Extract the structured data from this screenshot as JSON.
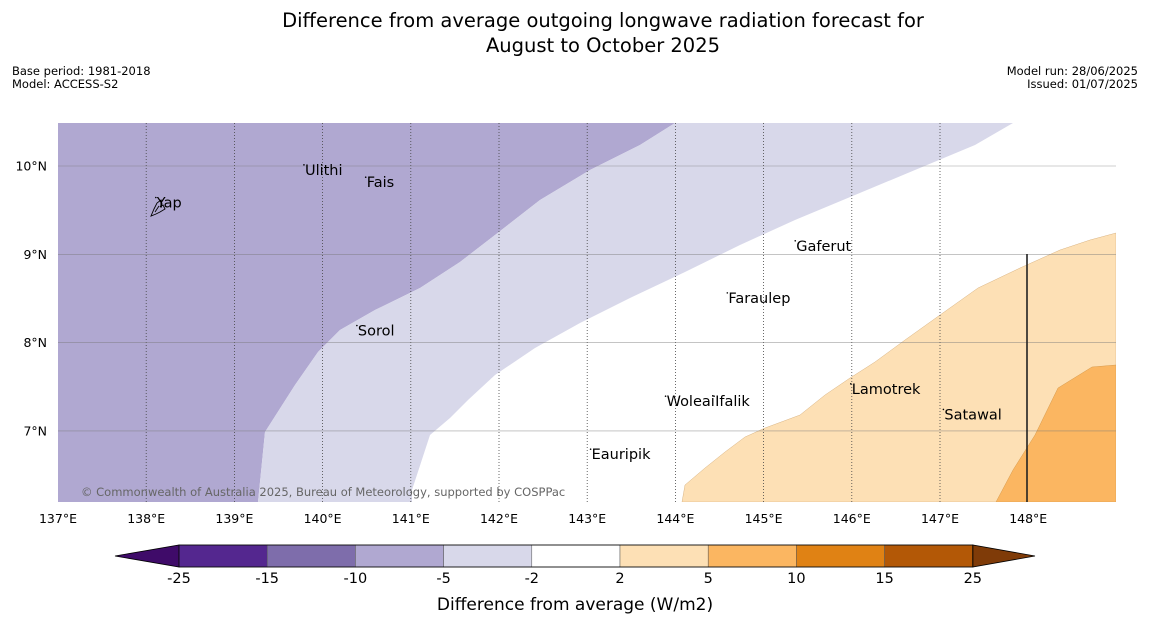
{
  "title": {
    "line1": "Difference from average outgoing longwave radiation forecast for",
    "line2": "August to October 2025"
  },
  "meta_left": {
    "base_period": "Base period: 1981-2018",
    "model": "Model: ACCESS-S2"
  },
  "meta_right": {
    "model_run": "Model run: 28/06/2025",
    "issued": "Issued: 01/07/2025"
  },
  "map": {
    "lon_range": [
      137,
      149
    ],
    "lat_range": [
      6.2,
      10.5
    ],
    "lon_ticks": [
      "137°E",
      "138°E",
      "139°E",
      "140°E",
      "141°E",
      "142°E",
      "143°E",
      "144°E",
      "145°E",
      "146°E",
      "147°E",
      "148°E"
    ],
    "lat_ticks": [
      "10°N",
      "9°N",
      "8°N",
      "7°N"
    ],
    "copyright": "© Commonwealth of Australia 2025, Bureau of Meteorology, supported by COSPPac",
    "places": [
      {
        "name": "Ulithi",
        "lon": 139.8,
        "lat": 9.9
      },
      {
        "name": "Fais",
        "lon": 140.5,
        "lat": 9.76
      },
      {
        "name": "Yap",
        "lon": 138.12,
        "lat": 9.53
      },
      {
        "name": "Gaferut",
        "lon": 145.37,
        "lat": 9.04
      },
      {
        "name": "Faraulep",
        "lon": 144.6,
        "lat": 8.45
      },
      {
        "name": "Sorol",
        "lon": 140.4,
        "lat": 8.08
      },
      {
        "name": "Lamotrek",
        "lon": 146.0,
        "lat": 7.42
      },
      {
        "name": "Woleai",
        "lon": 143.9,
        "lat": 7.28
      },
      {
        "name": "Ifalik",
        "lon": 144.45,
        "lat": 7.28
      },
      {
        "name": "Satawal",
        "lon": 147.05,
        "lat": 7.13
      },
      {
        "name": "Eauripik",
        "lon": 143.05,
        "lat": 6.68
      }
    ]
  },
  "colorbar": {
    "label": "Difference from average (W/m2)",
    "ticks": [
      "-25",
      "-15",
      "-10",
      "-5",
      "-2",
      "2",
      "5",
      "10",
      "15",
      "25"
    ],
    "colors": [
      "#3f0b69",
      "#54278f",
      "#7e6dab",
      "#b0a8d1",
      "#d8d8ea",
      "#ffffff",
      "#fde0b5",
      "#fbb661",
      "#e08214",
      "#b35806",
      "#7f3b08"
    ]
  }
}
